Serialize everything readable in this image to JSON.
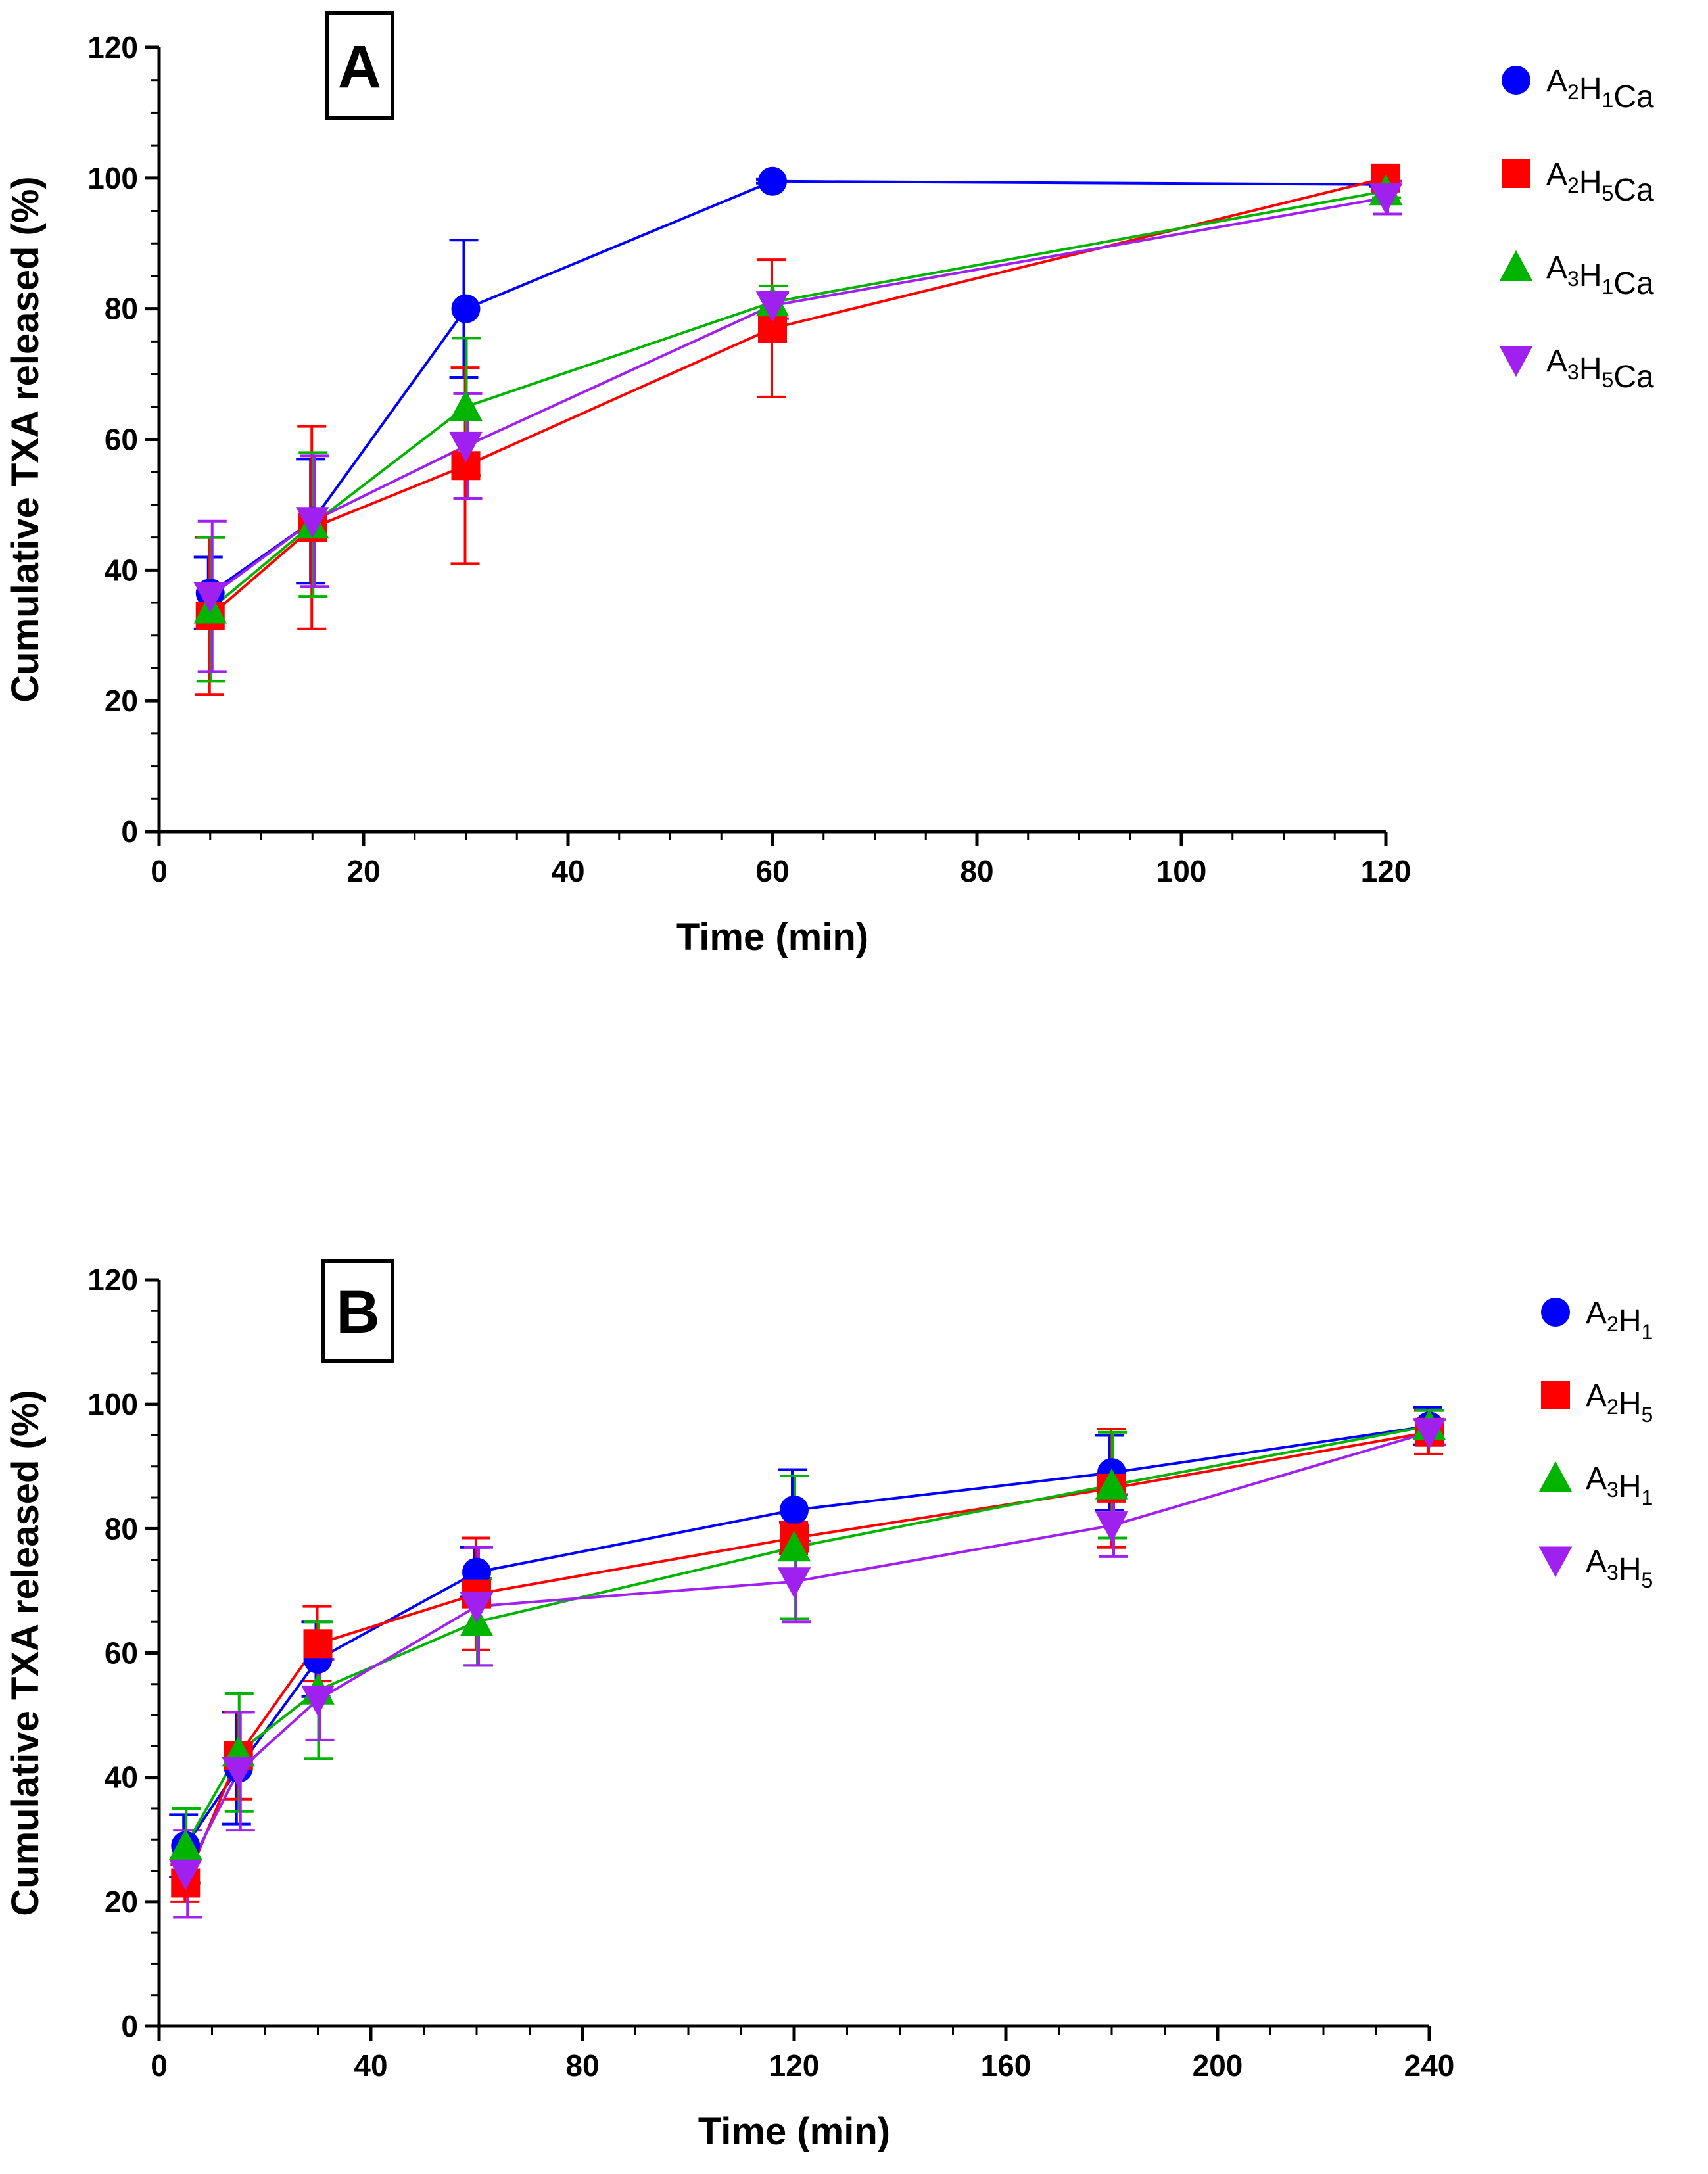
{
  "chart_data": [
    {
      "type": "line",
      "panel_label": "A",
      "xlabel": "Time (min)",
      "ylabel": "Cumulative TXA released (%)",
      "xlim": [
        0,
        120
      ],
      "ylim": [
        0,
        120
      ],
      "x_major_ticks": [
        0,
        20,
        40,
        60,
        80,
        100,
        120
      ],
      "x_minor_step": 5,
      "y_major_ticks": [
        0,
        20,
        40,
        60,
        80,
        100,
        120
      ],
      "y_minor_step": 5,
      "grid": false,
      "legend_position": "right",
      "x": [
        5,
        15,
        30,
        60,
        120
      ],
      "series": [
        {
          "name": "A2H1Ca",
          "label_parts": [
            [
              "A",
              "2"
            ],
            [
              "H",
              "1"
            ],
            [
              "Ca",
              ""
            ]
          ],
          "color": "#0000ff",
          "marker": "circle",
          "values": [
            36.5,
            47.5,
            80.0,
            99.5,
            99.0
          ],
          "errors": [
            5.5,
            9.5,
            10.5,
            0.3,
            0.3
          ]
        },
        {
          "name": "A2H5Ca",
          "label_parts": [
            [
              "A",
              "2"
            ],
            [
              "H",
              "5"
            ],
            [
              "Ca",
              ""
            ]
          ],
          "color": "#ff0000",
          "marker": "square",
          "values": [
            33.0,
            46.5,
            56.0,
            77.0,
            100.0
          ],
          "errors": [
            12.0,
            15.5,
            15.0,
            10.5,
            0.5
          ]
        },
        {
          "name": "A3H1Ca",
          "label_parts": [
            [
              "A",
              "3"
            ],
            [
              "H",
              "1"
            ],
            [
              "Ca",
              ""
            ]
          ],
          "color": "#00b400",
          "marker": "triangle-up",
          "values": [
            34.0,
            47.0,
            65.0,
            81.0,
            98.0
          ],
          "errors": [
            11.0,
            11.0,
            10.5,
            2.5,
            1.0
          ]
        },
        {
          "name": "A3H5Ca",
          "label_parts": [
            [
              "A",
              "3"
            ],
            [
              "H",
              "5"
            ],
            [
              "Ca",
              ""
            ]
          ],
          "color": "#a020f0",
          "marker": "triangle-down",
          "values": [
            36.0,
            47.5,
            59.0,
            80.5,
            97.0
          ],
          "errors": [
            11.5,
            10.0,
            8.0,
            2.0,
            2.5
          ]
        }
      ]
    },
    {
      "type": "line",
      "panel_label": "B",
      "xlabel": "Time (min)",
      "ylabel": "Cumulative TXA released (%)",
      "xlim": [
        0,
        240
      ],
      "ylim": [
        0,
        120
      ],
      "x_major_ticks": [
        0,
        40,
        80,
        120,
        160,
        200,
        240
      ],
      "x_minor_step": 10,
      "y_major_ticks": [
        0,
        20,
        40,
        60,
        80,
        100,
        120
      ],
      "y_minor_step": 5,
      "grid": false,
      "legend_position": "right",
      "x": [
        5,
        15,
        30,
        60,
        120,
        180,
        240
      ],
      "series": [
        {
          "name": "A2H1",
          "label_parts": [
            [
              "A",
              "2"
            ],
            [
              "H",
              "1"
            ]
          ],
          "color": "#0000ff",
          "marker": "circle",
          "values": [
            29.0,
            41.5,
            59.0,
            73.0,
            83.0,
            89.0,
            96.5
          ],
          "errors": [
            5.0,
            9.0,
            6.0,
            4.0,
            6.5,
            6.0,
            3.0
          ]
        },
        {
          "name": "A2H5",
          "label_parts": [
            [
              "A",
              "2"
            ],
            [
              "H",
              "5"
            ]
          ],
          "color": "#ff0000",
          "marker": "square",
          "values": [
            23.0,
            43.5,
            61.5,
            69.5,
            78.5,
            86.5,
            95.5
          ],
          "errors": [
            3.0,
            7.0,
            6.0,
            9.0,
            2.5,
            9.5,
            3.5
          ]
        },
        {
          "name": "A3H1",
          "label_parts": [
            [
              "A",
              "3"
            ],
            [
              "H",
              "1"
            ]
          ],
          "color": "#00b400",
          "marker": "triangle-up",
          "values": [
            29.0,
            44.0,
            54.0,
            65.0,
            77.0,
            87.0,
            96.5
          ],
          "errors": [
            6.0,
            9.5,
            11.0,
            7.0,
            11.5,
            8.5,
            2.5
          ]
        },
        {
          "name": "A3H5",
          "label_parts": [
            [
              "A",
              "3"
            ],
            [
              "H",
              "5"
            ]
          ],
          "color": "#a020f0",
          "marker": "triangle-down",
          "values": [
            24.5,
            41.0,
            52.5,
            67.5,
            71.5,
            80.5,
            95.5
          ],
          "errors": [
            7.0,
            9.5,
            6.5,
            9.5,
            6.5,
            5.0,
            2.0
          ]
        }
      ]
    }
  ]
}
